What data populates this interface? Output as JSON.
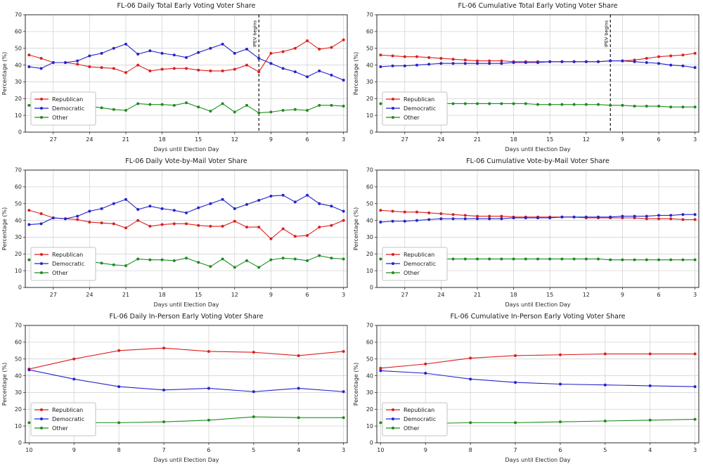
{
  "figure": {
    "background": "#ffffff",
    "xlabel": "Days until Election Day",
    "ylabel": "Percentage (%)"
  },
  "colors": {
    "republican": "#dc1f1f",
    "democratic": "#2424cc",
    "other": "#1e8c1e",
    "grid": "#d4d4d4",
    "annotation_line": "#000000"
  },
  "chart_data": [
    {
      "type": "line",
      "title": "FL-06 Daily Total Early Voting Voter Share",
      "xlabel": "Days until Election Day",
      "ylabel": "Percentage (%)",
      "ylim": [
        0,
        70
      ],
      "yticks": [
        0,
        10,
        20,
        30,
        40,
        50,
        60,
        70
      ],
      "xticks": [
        27,
        24,
        21,
        18,
        15,
        12,
        9,
        6,
        3
      ],
      "x_reversed": true,
      "grid": true,
      "legend_position": "lower left",
      "annotation": {
        "x": 10,
        "label": "IPEV begins"
      },
      "x": [
        29,
        28,
        27,
        26,
        25,
        24,
        23,
        22,
        21,
        20,
        19,
        18,
        17,
        16,
        15,
        14,
        13,
        12,
        11,
        10,
        9,
        8,
        7,
        6,
        5,
        4,
        3
      ],
      "series": [
        {
          "name": "Republican",
          "color": "#dc1f1f",
          "values": [
            46,
            44,
            41.5,
            41.5,
            40.5,
            39,
            38.5,
            38,
            35.5,
            40,
            36.5,
            37.5,
            38,
            38,
            37,
            36.5,
            36.5,
            37.5,
            40,
            36,
            47,
            48,
            50,
            54.5,
            49.5,
            50.5,
            55
          ]
        },
        {
          "name": "Democratic",
          "color": "#2424cc",
          "values": [
            39,
            38,
            41.5,
            41.5,
            42.5,
            45.5,
            47,
            50,
            52.5,
            46.5,
            48.5,
            47,
            46,
            44.5,
            47.5,
            50,
            52.5,
            47,
            49.5,
            44,
            41,
            38,
            36,
            33,
            36.5,
            34,
            31
          ]
        },
        {
          "name": "Other",
          "color": "#1e8c1e",
          "values": [
            16,
            15,
            17,
            17,
            16.5,
            15.5,
            14.5,
            13.5,
            13,
            17,
            16.5,
            16.5,
            16,
            17.5,
            15,
            12.5,
            17,
            12,
            16,
            11.5,
            12,
            13,
            13.5,
            13,
            16,
            16,
            15.5
          ]
        }
      ]
    },
    {
      "type": "line",
      "title": "FL-06 Cumulative Total Early Voting Voter Share",
      "xlabel": "Days until Election Day",
      "ylabel": "Percentage (%)",
      "ylim": [
        0,
        70
      ],
      "yticks": [
        0,
        10,
        20,
        30,
        40,
        50,
        60,
        70
      ],
      "xticks": [
        27,
        24,
        21,
        18,
        15,
        12,
        9,
        6,
        3
      ],
      "x_reversed": true,
      "grid": true,
      "legend_position": "lower left",
      "annotation": {
        "x": 10,
        "label": "IPEV begins"
      },
      "x": [
        29,
        28,
        27,
        26,
        25,
        24,
        23,
        22,
        21,
        20,
        19,
        18,
        17,
        16,
        15,
        14,
        13,
        12,
        11,
        10,
        9,
        8,
        7,
        6,
        5,
        4,
        3
      ],
      "series": [
        {
          "name": "Republican",
          "color": "#dc1f1f",
          "values": [
            46,
            45.5,
            45,
            45,
            44.5,
            44,
            43.5,
            43,
            42.5,
            42.5,
            42.5,
            42,
            42,
            42,
            42,
            42,
            42,
            42,
            42,
            42.5,
            42.5,
            43,
            44,
            45,
            45.5,
            46,
            47
          ]
        },
        {
          "name": "Democratic",
          "color": "#2424cc",
          "values": [
            39,
            39.5,
            39.5,
            40,
            40.5,
            41,
            41,
            41,
            41,
            41,
            41,
            41.5,
            41.5,
            41.5,
            42,
            42,
            42,
            42,
            42,
            42.5,
            42.5,
            42,
            41.5,
            41,
            40,
            39.5,
            38.5
          ]
        },
        {
          "name": "Other",
          "color": "#1e8c1e",
          "values": [
            17,
            17,
            17,
            17,
            17,
            17,
            17,
            17,
            17,
            17,
            17,
            17,
            17,
            16.5,
            16.5,
            16.5,
            16.5,
            16.5,
            16.5,
            16,
            16,
            15.5,
            15.5,
            15.5,
            15,
            15,
            15
          ]
        }
      ]
    },
    {
      "type": "line",
      "title": "FL-06 Daily Vote-by-Mail Voter Share",
      "xlabel": "Days until Election Day",
      "ylabel": "Percentage (%)",
      "ylim": [
        0,
        70
      ],
      "yticks": [
        0,
        10,
        20,
        30,
        40,
        50,
        60,
        70
      ],
      "xticks": [
        27,
        24,
        21,
        18,
        15,
        12,
        9,
        6,
        3
      ],
      "x_reversed": true,
      "grid": true,
      "legend_position": "lower left",
      "x": [
        29,
        28,
        27,
        26,
        25,
        24,
        23,
        22,
        21,
        20,
        19,
        18,
        17,
        16,
        15,
        14,
        13,
        12,
        11,
        10,
        9,
        8,
        7,
        6,
        5,
        4,
        3
      ],
      "series": [
        {
          "name": "Republican",
          "color": "#dc1f1f",
          "values": [
            46,
            44,
            41.5,
            41,
            40.5,
            39,
            38.5,
            38,
            35.5,
            40,
            36.5,
            37.5,
            38,
            38,
            37,
            36.5,
            36.5,
            39.5,
            36,
            36,
            29,
            35,
            30.5,
            31,
            36,
            37,
            40
          ]
        },
        {
          "name": "Democratic",
          "color": "#2424cc",
          "values": [
            37.5,
            38,
            41.5,
            41,
            42.5,
            45.5,
            47,
            50,
            52.5,
            46.5,
            48.5,
            47,
            46,
            44.5,
            47.5,
            50,
            52.5,
            47,
            49.5,
            52,
            54.5,
            55,
            51,
            55,
            50,
            48.5,
            45.5
          ]
        },
        {
          "name": "Other",
          "color": "#1e8c1e",
          "values": [
            16.5,
            15,
            17,
            17,
            16.5,
            15.5,
            14.5,
            13.5,
            13,
            17,
            16.5,
            16.5,
            16,
            17.5,
            15,
            12.5,
            17,
            12,
            16,
            12,
            16.5,
            17.5,
            17,
            16,
            19,
            17.5,
            17
          ]
        }
      ]
    },
    {
      "type": "line",
      "title": "FL-06 Cumulative Vote-by-Mail Voter Share",
      "xlabel": "Days until Election Day",
      "ylabel": "Percentage (%)",
      "ylim": [
        0,
        70
      ],
      "yticks": [
        0,
        10,
        20,
        30,
        40,
        50,
        60,
        70
      ],
      "xticks": [
        27,
        24,
        21,
        18,
        15,
        12,
        9,
        6,
        3
      ],
      "x_reversed": true,
      "grid": true,
      "legend_position": "lower left",
      "x": [
        29,
        28,
        27,
        26,
        25,
        24,
        23,
        22,
        21,
        20,
        19,
        18,
        17,
        16,
        15,
        14,
        13,
        12,
        11,
        10,
        9,
        8,
        7,
        6,
        5,
        4,
        3
      ],
      "series": [
        {
          "name": "Republican",
          "color": "#dc1f1f",
          "values": [
            46,
            45.5,
            45,
            45,
            44.5,
            44,
            43.5,
            43,
            42.5,
            42.5,
            42.5,
            42,
            42,
            42,
            42,
            42,
            42,
            41.5,
            41.5,
            41.5,
            41.5,
            41.5,
            41,
            41,
            41,
            40.5,
            40.5
          ]
        },
        {
          "name": "Democratic",
          "color": "#2424cc",
          "values": [
            39,
            39.5,
            39.5,
            40,
            40.5,
            41,
            41,
            41,
            41,
            41,
            41,
            41.5,
            41.5,
            41.5,
            41.5,
            42,
            42,
            42,
            42,
            42,
            42.5,
            42.5,
            42.5,
            43,
            43,
            43.5,
            43.5
          ]
        },
        {
          "name": "Other",
          "color": "#1e8c1e",
          "values": [
            17,
            17,
            17,
            17,
            17,
            17,
            17,
            17,
            17,
            17,
            17,
            17,
            17,
            17,
            17,
            17,
            17,
            17,
            17,
            16.5,
            16.5,
            16.5,
            16.5,
            16.5,
            16.5,
            16.5,
            16.5
          ]
        }
      ]
    },
    {
      "type": "line",
      "title": "FL-06 Daily In-Person Early Voting Voter Share",
      "xlabel": "Days until Election Day",
      "ylabel": "Percentage (%)",
      "ylim": [
        0,
        70
      ],
      "yticks": [
        0,
        10,
        20,
        30,
        40,
        50,
        60,
        70
      ],
      "xticks": [
        10,
        9,
        8,
        7,
        6,
        5,
        4,
        3
      ],
      "x_reversed": true,
      "grid": true,
      "legend_position": "lower left",
      "x": [
        10,
        9,
        8,
        7,
        6,
        5,
        4,
        3
      ],
      "series": [
        {
          "name": "Republican",
          "color": "#dc1f1f",
          "values": [
            44,
            50,
            55,
            56.5,
            54.5,
            54,
            52,
            54.5
          ]
        },
        {
          "name": "Democratic",
          "color": "#2424cc",
          "values": [
            43.5,
            38,
            33.5,
            31.5,
            32.5,
            30.5,
            32.5,
            30.5
          ]
        },
        {
          "name": "Other",
          "color": "#1e8c1e",
          "values": [
            12,
            12,
            12,
            12.5,
            13.5,
            15.5,
            15,
            15
          ]
        }
      ]
    },
    {
      "type": "line",
      "title": "FL-06 Cumulative In-Person Early Voting Voter Share",
      "xlabel": "Days until Election Day",
      "ylabel": "Percentage (%)",
      "ylim": [
        0,
        70
      ],
      "yticks": [
        0,
        10,
        20,
        30,
        40,
        50,
        60,
        70
      ],
      "xticks": [
        10,
        9,
        8,
        7,
        6,
        5,
        4,
        3
      ],
      "x_reversed": true,
      "grid": true,
      "legend_position": "lower left",
      "x": [
        10,
        9,
        8,
        7,
        6,
        5,
        4,
        3
      ],
      "series": [
        {
          "name": "Republican",
          "color": "#dc1f1f",
          "values": [
            44.5,
            47,
            50.5,
            52,
            52.5,
            53,
            53,
            53
          ]
        },
        {
          "name": "Democratic",
          "color": "#2424cc",
          "values": [
            43,
            41.5,
            38,
            36,
            35,
            34.5,
            34,
            33.5
          ]
        },
        {
          "name": "Other",
          "color": "#1e8c1e",
          "values": [
            12,
            11.5,
            12,
            12,
            12.5,
            13,
            13.5,
            14
          ]
        }
      ]
    }
  ]
}
